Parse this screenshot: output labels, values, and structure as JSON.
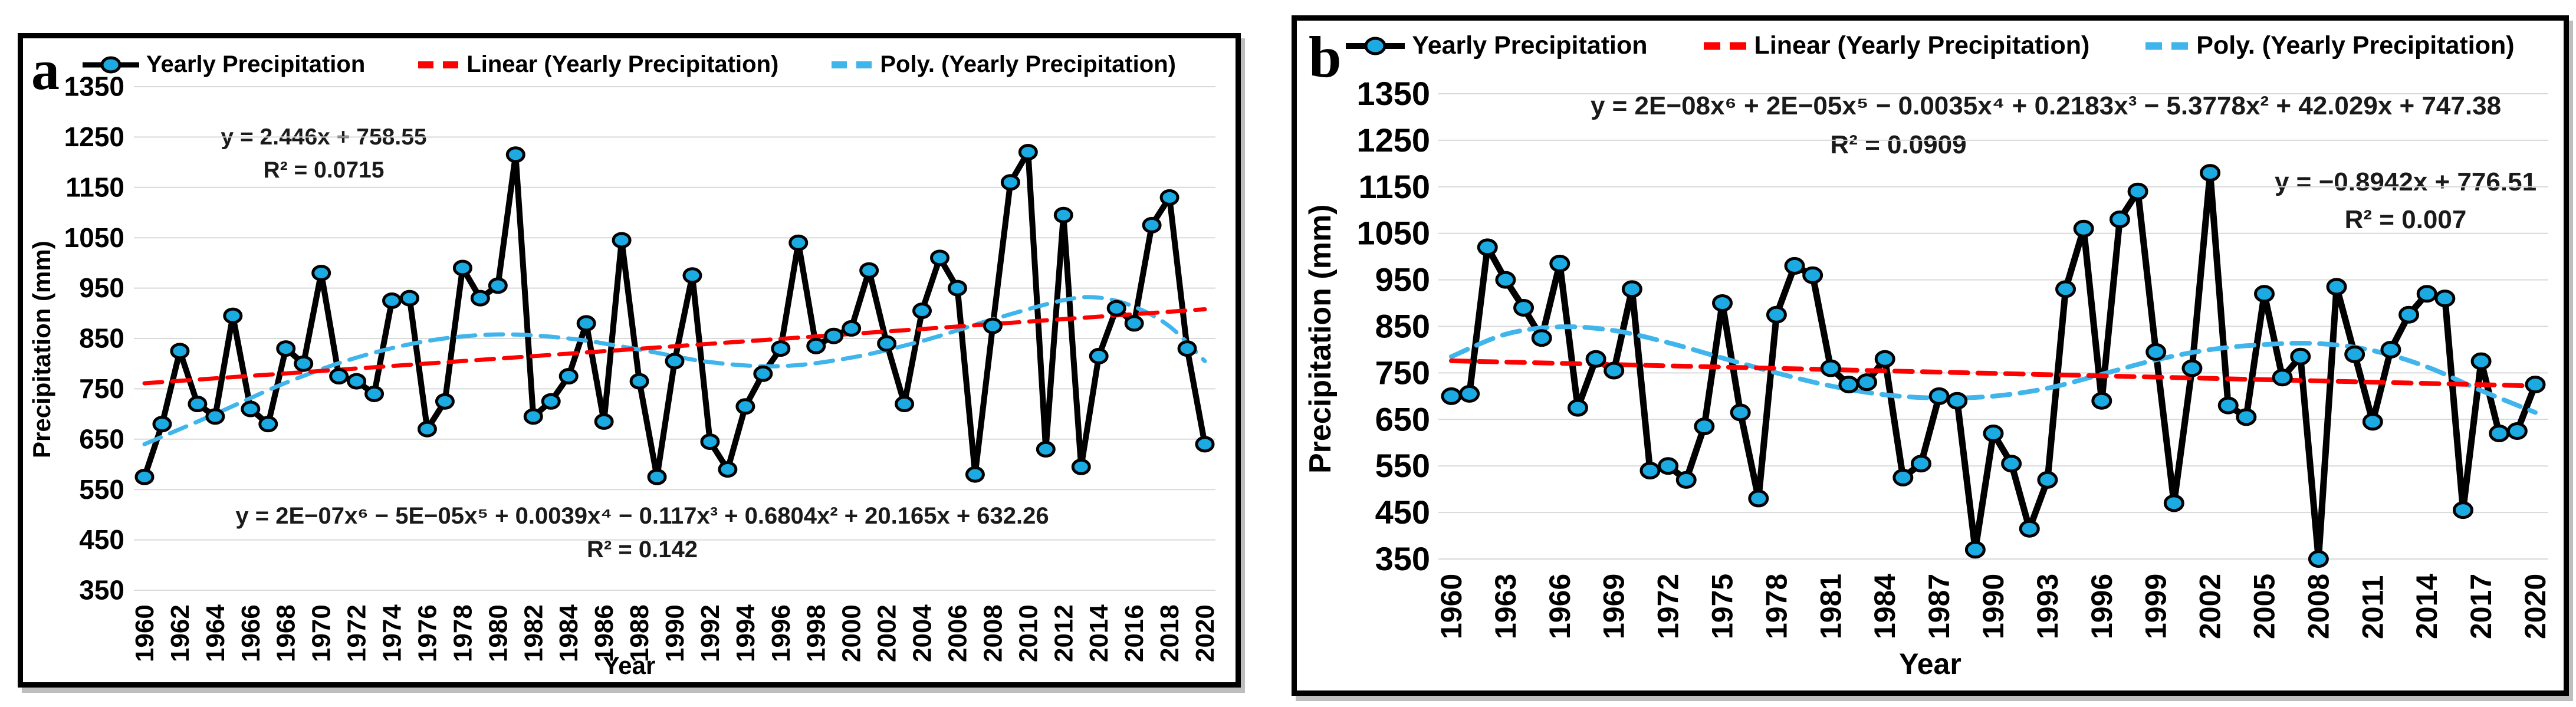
{
  "colors": {
    "series_line": "#000000",
    "marker_fill": "#1CAAE2",
    "linear_trend": "#FF0000",
    "poly_trend": "#3FB5EC",
    "gridline": "#D9D9D9",
    "text": "#1a1a1a"
  },
  "panels": [
    {
      "label": "a",
      "legend": [
        {
          "name": "series",
          "label": "Yearly Precipitation"
        },
        {
          "name": "linear",
          "label": "Linear (Yearly Precipitation)"
        },
        {
          "name": "poly",
          "label": "Poly. (Yearly Precipitation)"
        }
      ],
      "y_title": "Precipitation (mm)",
      "x_title": "Year",
      "equations": {
        "linear_1": "y = 2.446x + 758.55",
        "linear_2": "R² = 0.0715",
        "poly_1": "y = 2E−07x⁶ − 5E−05x⁵ + 0.0039x⁴ − 0.117x³ + 0.6804x² + 20.165x + 632.26",
        "poly_2": "R² = 0.142"
      },
      "chart_data": {
        "type": "line",
        "xlabel": "Year",
        "ylabel": "Precipitation (mm)",
        "ylim": [
          350,
          1350
        ],
        "y_ticks": [
          1350,
          1250,
          1150,
          1050,
          950,
          850,
          750,
          650,
          550,
          450,
          350
        ],
        "x_ticks": [
          1960,
          1962,
          1964,
          1966,
          1968,
          1970,
          1972,
          1974,
          1976,
          1978,
          1980,
          1982,
          1984,
          1986,
          1988,
          1990,
          1992,
          1994,
          1996,
          1998,
          2000,
          2002,
          2004,
          2006,
          2008,
          2010,
          2012,
          2014,
          2016,
          2018,
          2020
        ],
        "years_start": 1960,
        "years_end": 2020,
        "series": [
          {
            "name": "Yearly Precipitation",
            "values": [
              575,
              680,
              825,
              720,
              695,
              895,
              710,
              680,
              830,
              800,
              980,
              775,
              765,
              740,
              925,
              930,
              670,
              725,
              990,
              930,
              955,
              1215,
              695,
              725,
              775,
              880,
              685,
              1045,
              765,
              575,
              805,
              975,
              645,
              590,
              715,
              780,
              830,
              1040,
              835,
              855,
              870,
              985,
              840,
              720,
              905,
              1010,
              950,
              580,
              875,
              1160,
              1220,
              630,
              1095,
              595,
              815,
              910,
              880,
              1075,
              1130,
              830,
              640
            ]
          },
          {
            "name": "Linear (Yearly Precipitation)",
            "trend_endpoints": [
              761,
              908
            ]
          },
          {
            "name": "Poly. (Yearly Precipitation)",
            "sample_years": [
              1960,
              1964,
              1968,
              1972,
              1976,
              1980,
              1984,
              1988,
              1992,
              1996,
              2000,
              2004,
              2008,
              2012,
              2014,
              2016,
              2018,
              2020
            ],
            "sample_values": [
              640,
              700,
              762,
              812,
              845,
              858,
              850,
              828,
              803,
              795,
              812,
              845,
              888,
              926,
              931,
              913,
              874,
              805
            ]
          }
        ]
      }
    },
    {
      "label": "b",
      "legend": [
        {
          "name": "series",
          "label": "Yearly Precipitation"
        },
        {
          "name": "linear",
          "label": "Linear (Yearly Precipitation)"
        },
        {
          "name": "poly",
          "label": "Poly. (Yearly Precipitation)"
        }
      ],
      "y_title": "Precipitation (mm)",
      "x_title": "Year",
      "equations": {
        "poly_1": "y = 2E−08x⁶ + 2E−05x⁵ − 0.0035x⁴ + 0.2183x³ − 5.3778x² + 42.029x + 747.38",
        "poly_2": "R² = 0.0909",
        "linear_1": "y = −0.8942x + 776.51",
        "linear_2": "R² = 0.007"
      },
      "chart_data": {
        "type": "line",
        "xlabel": "Year",
        "ylabel": "Precipitation (mm)",
        "ylim": [
          350,
          1350
        ],
        "y_ticks": [
          1350,
          1250,
          1150,
          1050,
          950,
          850,
          750,
          650,
          550,
          450,
          350
        ],
        "x_ticks": [
          1960,
          1963,
          1966,
          1969,
          1972,
          1975,
          1978,
          1981,
          1984,
          1987,
          1990,
          1993,
          1996,
          1999,
          2002,
          2005,
          2008,
          2011,
          2014,
          2017,
          2020
        ],
        "years_start": 1960,
        "years_end": 2020,
        "series": [
          {
            "name": "Yearly Precipitation",
            "values": [
              700,
              705,
              1020,
              950,
              890,
              825,
              985,
              675,
              780,
              755,
              930,
              540,
              550,
              520,
              635,
              900,
              665,
              480,
              875,
              980,
              960,
              760,
              725,
              730,
              780,
              525,
              555,
              700,
              690,
              370,
              620,
              555,
              415,
              520,
              930,
              1060,
              690,
              1080,
              1140,
              795,
              470,
              760,
              1180,
              680,
              655,
              920,
              740,
              785,
              350,
              935,
              790,
              645,
              800,
              875,
              920,
              910,
              455,
              775,
              620,
              625,
              725
            ]
          },
          {
            "name": "Linear (Yearly Precipitation)",
            "trend_endpoints": [
              776,
              722
            ]
          },
          {
            "name": "Poly. (Yearly Precipitation)",
            "sample_years": [
              1960,
              1963,
              1966,
              1969,
              1972,
              1975,
              1978,
              1981,
              1984,
              1987,
              1990,
              1993,
              1996,
              1999,
              2002,
              2005,
              2008,
              2011,
              2014,
              2017,
              2020
            ],
            "sample_values": [
              785,
              833,
              849,
              841,
              815,
              782,
              750,
              722,
              703,
              696,
              700,
              717,
              747,
              778,
              800,
              811,
              813,
              798,
              763,
              712,
              665
            ]
          }
        ]
      }
    }
  ]
}
